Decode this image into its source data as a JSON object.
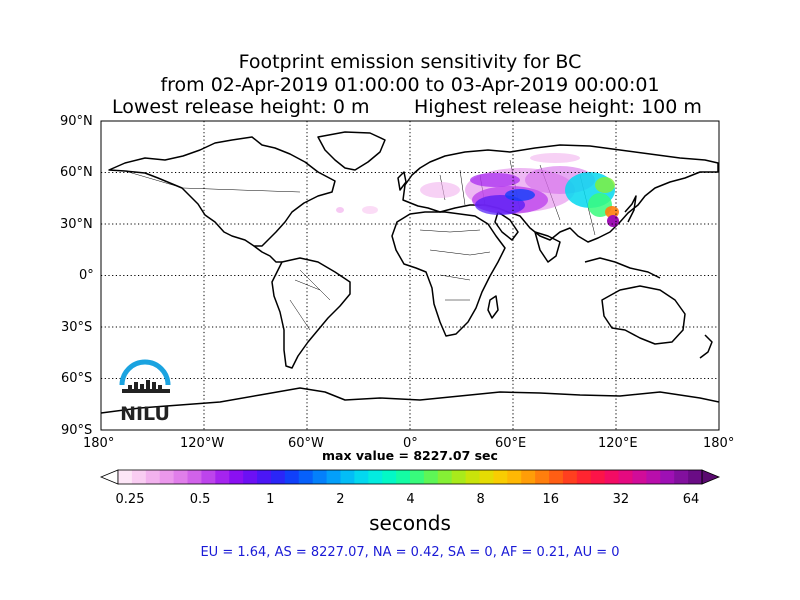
{
  "title": {
    "line1": "Footprint emission sensitivity for BC",
    "line2": "from 02-Apr-2019 01:00:00 to 03-Apr-2019 00:00:01",
    "line3_left": "Lowest release height: 0 m",
    "line3_right": "Highest release height: 100 m"
  },
  "map": {
    "lat_labels": [
      "90°N",
      "60°N",
      "30°N",
      "0°",
      "30°S",
      "60°S",
      "90°S"
    ],
    "lon_labels": [
      "180°",
      "120°W",
      "60°W",
      "0°",
      "60°E",
      "120°E",
      "180°"
    ],
    "grid": "dotted",
    "logo_text": "NILU"
  },
  "max_value_text": "max value = 8227.07 sec",
  "colorbar": {
    "tick_labels": [
      "0.25",
      "0.5",
      "1",
      "2",
      "4",
      "8",
      "16",
      "32",
      "64"
    ],
    "unit_label": "seconds",
    "colors": [
      "#fde6f7",
      "#f9cdf2",
      "#f2b2ee",
      "#eb98ec",
      "#e07eea",
      "#d162ea",
      "#bd44ec",
      "#a524ef",
      "#8a10f2",
      "#6c10f4",
      "#4b16f6",
      "#2a26f8",
      "#1040fa",
      "#0660fb",
      "#0480fb",
      "#039ffa",
      "#03bdf6",
      "#03d8ef",
      "#03ece0",
      "#03f8c6",
      "#14fca4",
      "#38fb7c",
      "#5ef656",
      "#85f035",
      "#a9ea1b",
      "#c9e40a",
      "#e5dc03",
      "#f9cd02",
      "#ffb804",
      "#ff9d08",
      "#ff7e0d",
      "#ff5e14",
      "#ff3f1f",
      "#ff2530",
      "#fc1448",
      "#f30c64",
      "#e50a80",
      "#d10c99",
      "#b90eab",
      "#9e10b4",
      "#82109e",
      "#6a0c85"
    ]
  },
  "stats_text": "EU = 1.64,  AS = 8227.07,  NA = 0.42,  SA = 0,  AF = 0.21,  AU = 0"
}
